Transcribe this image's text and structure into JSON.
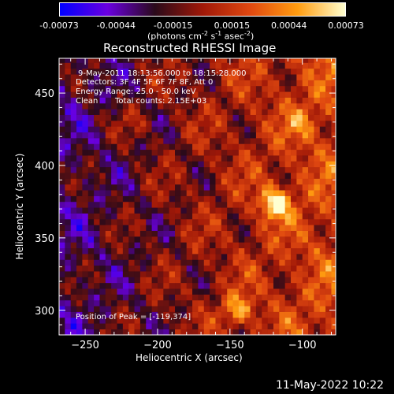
{
  "colorbar": {
    "ticks": [
      "-0.00073",
      "-0.00044",
      "-0.00015",
      "0.00015",
      "0.00044",
      "0.00073"
    ],
    "tick_values": [
      -0.00073,
      -0.00044,
      -0.00015,
      0.00015,
      0.00044,
      0.00073
    ],
    "units_line1": "(photons cm",
    "units_sup1": "-2",
    "units_mid1": " s",
    "units_sup2": "-1",
    "units_mid2": " asec",
    "units_sup3": "-2",
    "units_end": ")",
    "colors": [
      "#0000ff",
      "#6a00e0",
      "#2a0a1a",
      "#a01808",
      "#e04810",
      "#ff9c10",
      "#ffffd0"
    ]
  },
  "chart_data": {
    "type": "heatmap",
    "title": "Reconstructed RHESSI Image",
    "xlabel": "Heliocentric X (arcsec)",
    "ylabel": "Heliocentric Y (arcsec)",
    "xlim": [
      -268,
      -77
    ],
    "ylim": [
      283,
      474
    ],
    "x_ticks": [
      -250,
      -200,
      -150,
      -100
    ],
    "y_ticks": [
      300,
      350,
      400,
      450
    ],
    "x_tick_labels": [
      "−250",
      "−200",
      "−150",
      "−100"
    ],
    "y_tick_labels": [
      "300",
      "350",
      "400",
      "450"
    ],
    "peak_position": [
      -119,
      374
    ],
    "peaks": [
      {
        "x": -119,
        "y": 374,
        "value": 0.00073
      },
      {
        "x": -145,
        "y": 300,
        "value": 0.00055
      },
      {
        "x": -215,
        "y": 430,
        "value": 0.0002
      },
      {
        "x": -100,
        "y": 430,
        "value": 0.0003
      }
    ],
    "annotations": {
      "time_range": "9-May-2011 18:13:56.000 to 18:15:28.000",
      "detectors": "Detectors: 3F 4F 5F 6F 7F 8F, Att 0",
      "energy_range": "Energy Range: 25.0 - 50.0 keV",
      "algorithm": "Clean",
      "total_counts": "Total counts: 2.15E+03",
      "peak_label": "Position of Peak = [-119,374]"
    }
  },
  "footer": {
    "timestamp": "11-May-2022 10:22"
  }
}
